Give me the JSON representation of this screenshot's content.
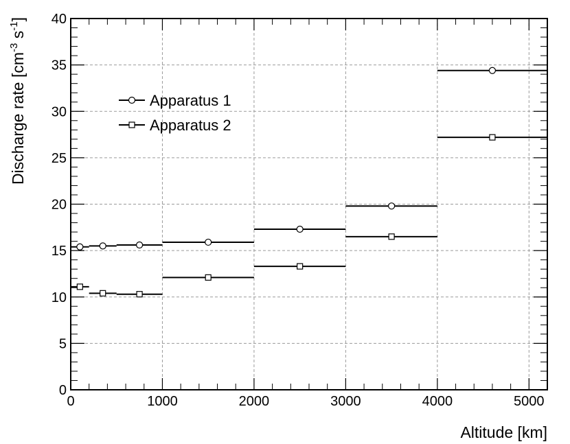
{
  "chart_data": {
    "type": "scatter",
    "xlabel": "Altitude [km]",
    "ylabel": {
      "base": "Discharge rate [cm",
      "exp1": "-3",
      "mid": " s",
      "exp2": "-1",
      "end": "]"
    },
    "xlim": [
      0,
      5200
    ],
    "ylim": [
      0,
      40
    ],
    "xticks": [
      0,
      1000,
      2000,
      3000,
      4000,
      5000
    ],
    "yticks": [
      0,
      5,
      10,
      15,
      20,
      25,
      30,
      35,
      40
    ],
    "grid": true,
    "legend_position": "upper-left",
    "series": [
      {
        "name": "Apparatus 1",
        "marker": "circle",
        "points": [
          {
            "x": 100,
            "y": 15.4,
            "xmin": 0,
            "xmax": 200
          },
          {
            "x": 350,
            "y": 15.5,
            "xmin": 200,
            "xmax": 500
          },
          {
            "x": 750,
            "y": 15.6,
            "xmin": 500,
            "xmax": 1000
          },
          {
            "x": 1500,
            "y": 15.9,
            "xmin": 1000,
            "xmax": 2000
          },
          {
            "x": 2500,
            "y": 17.3,
            "xmin": 2000,
            "xmax": 3000
          },
          {
            "x": 3500,
            "y": 19.8,
            "xmin": 3000,
            "xmax": 4000
          },
          {
            "x": 4600,
            "y": 34.4,
            "xmin": 4000,
            "xmax": 5200
          }
        ]
      },
      {
        "name": "Apparatus 2",
        "marker": "square",
        "points": [
          {
            "x": 100,
            "y": 11.1,
            "xmin": 0,
            "xmax": 200
          },
          {
            "x": 350,
            "y": 10.4,
            "xmin": 200,
            "xmax": 500
          },
          {
            "x": 750,
            "y": 10.3,
            "xmin": 500,
            "xmax": 1000
          },
          {
            "x": 1500,
            "y": 12.1,
            "xmin": 1000,
            "xmax": 2000
          },
          {
            "x": 2500,
            "y": 13.3,
            "xmin": 2000,
            "xmax": 3000
          },
          {
            "x": 3500,
            "y": 16.5,
            "xmin": 3000,
            "xmax": 4000
          },
          {
            "x": 4600,
            "y": 27.2,
            "xmin": 4000,
            "xmax": 5200
          }
        ]
      }
    ]
  }
}
